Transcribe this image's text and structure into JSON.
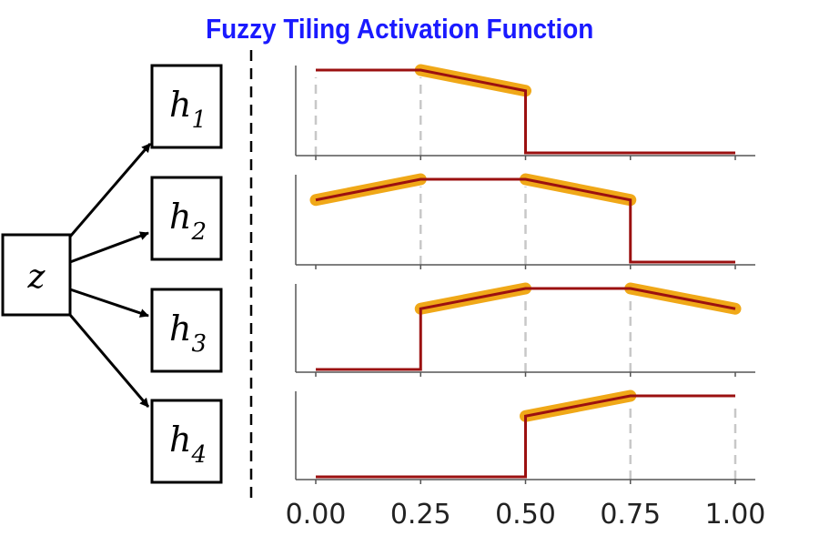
{
  "title": "Fuzzy Tiling Activation Function",
  "input_node": {
    "label": "z"
  },
  "hidden_nodes": [
    {
      "label": "h",
      "subscript": "1"
    },
    {
      "label": "h",
      "subscript": "2"
    },
    {
      "label": "h",
      "subscript": "3"
    },
    {
      "label": "h",
      "subscript": "4"
    }
  ],
  "colors": {
    "title": "#1a1aff",
    "line": "#9b1010",
    "highlight": "#f0a818",
    "dash": "#c8c8c8"
  },
  "chart_data": {
    "type": "line",
    "xlim": [
      0,
      1
    ],
    "ylim": [
      0,
      1
    ],
    "xticks": [
      "0.00",
      "0.25",
      "0.50",
      "0.75",
      "1.00"
    ],
    "xtick_values": [
      0,
      0.25,
      0.5,
      0.75,
      1.0
    ],
    "panels": [
      {
        "name": "h1",
        "points": [
          [
            0,
            1
          ],
          [
            0.25,
            1
          ],
          [
            0.5,
            0.75
          ],
          [
            0.5,
            0
          ],
          [
            1,
            0
          ]
        ],
        "highlight": [
          [
            [
              0.25,
              1
            ],
            [
              0.5,
              0.75
            ]
          ]
        ],
        "dashes": [
          0,
          0.25
        ]
      },
      {
        "name": "h2",
        "points": [
          [
            0,
            0.75
          ],
          [
            0.25,
            1
          ],
          [
            0.5,
            1
          ],
          [
            0.75,
            0.75
          ],
          [
            0.75,
            0
          ],
          [
            1,
            0
          ]
        ],
        "highlight": [
          [
            [
              0,
              0.75
            ],
            [
              0.25,
              1
            ]
          ],
          [
            [
              0.5,
              1
            ],
            [
              0.75,
              0.75
            ]
          ]
        ],
        "dashes": [
          0.25,
          0.5
        ]
      },
      {
        "name": "h3",
        "points": [
          [
            0,
            0
          ],
          [
            0.25,
            0
          ],
          [
            0.25,
            0.75
          ],
          [
            0.5,
            1
          ],
          [
            0.75,
            1
          ],
          [
            1,
            0.75
          ]
        ],
        "highlight": [
          [
            [
              0.25,
              0.75
            ],
            [
              0.5,
              1
            ]
          ],
          [
            [
              0.75,
              1
            ],
            [
              1,
              0.75
            ]
          ]
        ],
        "dashes": [
          0.5,
          0.75
        ]
      },
      {
        "name": "h4",
        "points": [
          [
            0,
            0
          ],
          [
            0.5,
            0
          ],
          [
            0.5,
            0.75
          ],
          [
            0.75,
            1
          ],
          [
            1,
            1
          ]
        ],
        "highlight": [
          [
            [
              0.5,
              0.75
            ],
            [
              0.75,
              1
            ]
          ]
        ],
        "dashes": [
          0.75,
          1.0
        ]
      }
    ]
  }
}
